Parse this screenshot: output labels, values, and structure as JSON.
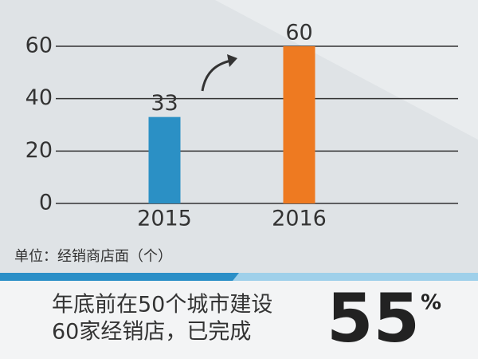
{
  "chart_data": {
    "type": "bar",
    "categories": [
      "2015",
      "2016"
    ],
    "values": [
      33,
      60
    ],
    "colors": [
      "#2b90c5",
      "#ee7a21"
    ],
    "ylim": [
      0,
      60
    ],
    "yticks": [
      0,
      20,
      40,
      60
    ],
    "grid": true,
    "unit_note": "单位：经销商店面（个）",
    "caption_lines": [
      "年底前在50个城市建设",
      "60家经销店，已完成"
    ],
    "highlight": "55",
    "highlight_unit": "%"
  }
}
